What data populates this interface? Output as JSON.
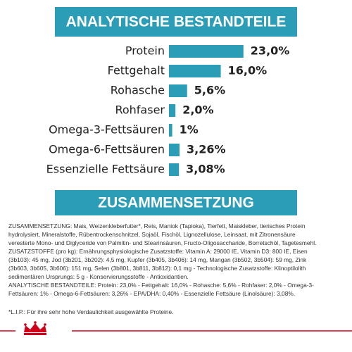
{
  "chart_data": {
    "type": "bar",
    "orientation": "horizontal",
    "title": "ANALYTISCHE BESTANDTEILE",
    "categories": [
      "Protein",
      "Fettgehalt",
      "Rohasche",
      "Rohfaser",
      "Omega-3-Fettsäuren",
      "Omega-6-Fettsäuren",
      "Essenzielle Fettsäure"
    ],
    "values": [
      23.0,
      16.0,
      5.6,
      2.0,
      1,
      3.26,
      3.08
    ],
    "value_labels": [
      "23,0%",
      "16,0%",
      "5,6%",
      "2,0%",
      "1%",
      "3,26%",
      "3,08%"
    ],
    "color": "#2b9db7"
  },
  "composition": {
    "title": "ZUSAMMENSETZUNG",
    "lines": [
      "ZUSAMMENSETZUNG: Mais, Weizenkleberfutter*, Reis, Maniok (Tapioka), Tierfett, Maiskleber, tierisches Protein",
      "hydrolysiert, Mineralstoffe, Rübentrockenschnitzel, Sojaöl, Fischöl, Lignozellulose, Leinsaat, mit Zitronensäure",
      "veresterte Mono- und Diglyceride von Palmitin- und Stearinsäuren, Fructo-Oligosaccharide, Borretschöl, Tagetesmehl.",
      "ZUSATZSTOFFE (pro kg): Ernährungsphysiologische Zusatzstoffe: Vitamin A: 29000 IE, Vitamin D3: 800 IE, Eisen",
      "(3b103): 45 mg, Jod (3b201, 3b202): 4,5 mg, Kupfer (3b405, 3b406): 14 mg, Mangan (3b502, 3b504): 59 mg, Zink",
      "(3b603, 3b605, 3b606): 151 mg, Selen (3b801, 3b811, 3b812): 0,1 mg - Technologische Zusatzstoffe: Klinoptilolith",
      "sedimentären Ursprungs: 5 g - Konservierungsstoffe - Antioxidantien.",
      "ANALYTISCHE BESTANDTEILE: Protein: 23,0% - Fettgehalt: 16,0% - Rohasche: 5,6% - Rohfaser: 2,0% - Omega-3-",
      "Fettsäuren: 1% - Omega-6-Fettsäuren: 3,26% - EPA/DHA: 0,40% - Essenzielle Fettsäure (Linolsäure): 3,08%."
    ],
    "footnote": "*L.I.P.: Für ihre sehr hohe Verdaulichkeit ausgewählte Proteine."
  }
}
